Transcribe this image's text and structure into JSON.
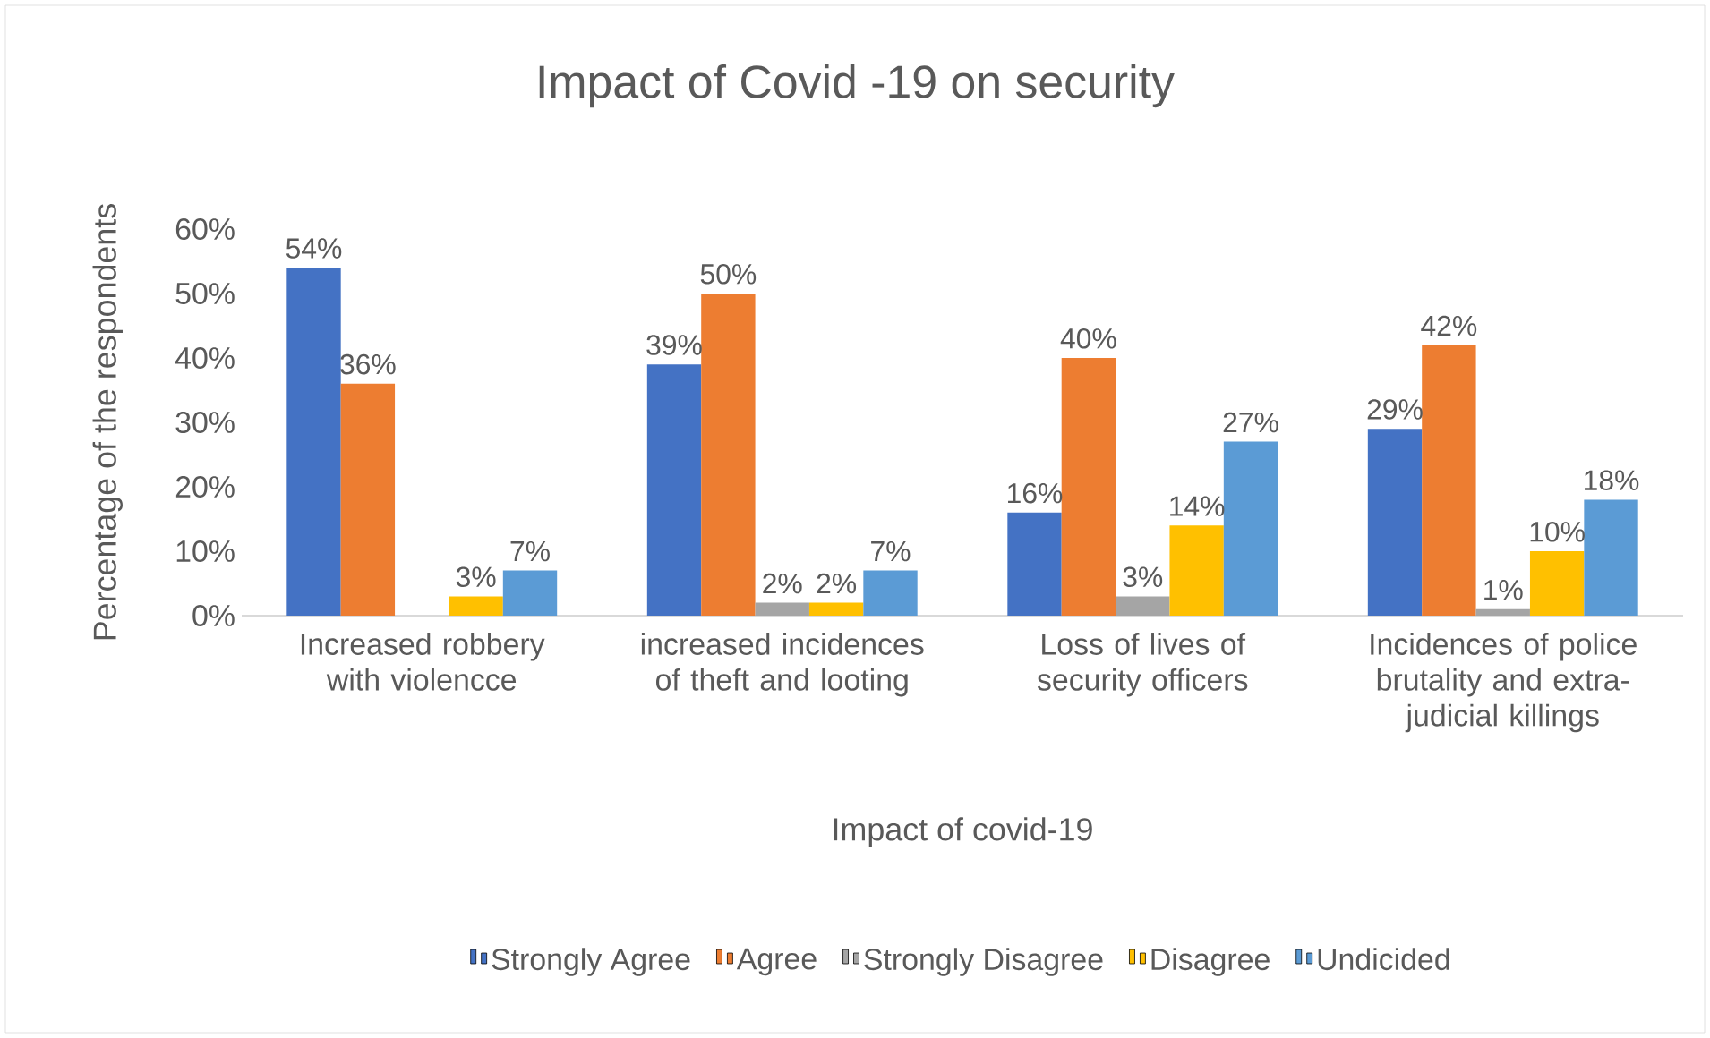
{
  "chart_data": {
    "type": "bar",
    "title": "Impact of Covid -19 on security",
    "xlabel": "Impact of covid-19",
    "ylabel": "Percentage of the respondents",
    "categories": [
      "Increased robbery with violencce",
      "increased incidences of theft and looting",
      "Loss of lives of security officers",
      "Incidences of police brutality and extra-judicial killings"
    ],
    "series": [
      {
        "name": "Strongly Agree",
        "color": "#4472c4",
        "values": [
          54,
          39,
          16,
          29
        ],
        "value_labels": [
          "54%",
          "39%",
          "16%",
          "29%"
        ]
      },
      {
        "name": "Agree",
        "color": "#ed7d31",
        "values": [
          36,
          50,
          40,
          42
        ],
        "value_labels": [
          "36%",
          "50%",
          "40%",
          "42%"
        ]
      },
      {
        "name": "Strongly Disagree",
        "color": "#a5a5a5",
        "values": [
          null,
          2,
          3,
          1
        ],
        "value_labels": [
          null,
          "2%",
          "3%",
          "1%"
        ]
      },
      {
        "name": "Disagree",
        "color": "#ffc000",
        "values": [
          3,
          2,
          14,
          10
        ],
        "value_labels": [
          "3%",
          "2%",
          "14%",
          "10%"
        ]
      },
      {
        "name": "Undicided",
        "color": "#5b9bd5",
        "values": [
          7,
          7,
          27,
          18
        ],
        "value_labels": [
          "7%",
          "7%",
          "27%",
          "18%"
        ]
      }
    ],
    "ylim": [
      0,
      60
    ],
    "yticks": [
      {
        "value": 0,
        "label": "0%"
      },
      {
        "value": 10,
        "label": "10%"
      },
      {
        "value": 20,
        "label": "20%"
      },
      {
        "value": 30,
        "label": "30%"
      },
      {
        "value": 40,
        "label": "40%"
      },
      {
        "value": 50,
        "label": "50%"
      },
      {
        "value": 60,
        "label": "60%"
      }
    ],
    "legend": "bottom"
  }
}
